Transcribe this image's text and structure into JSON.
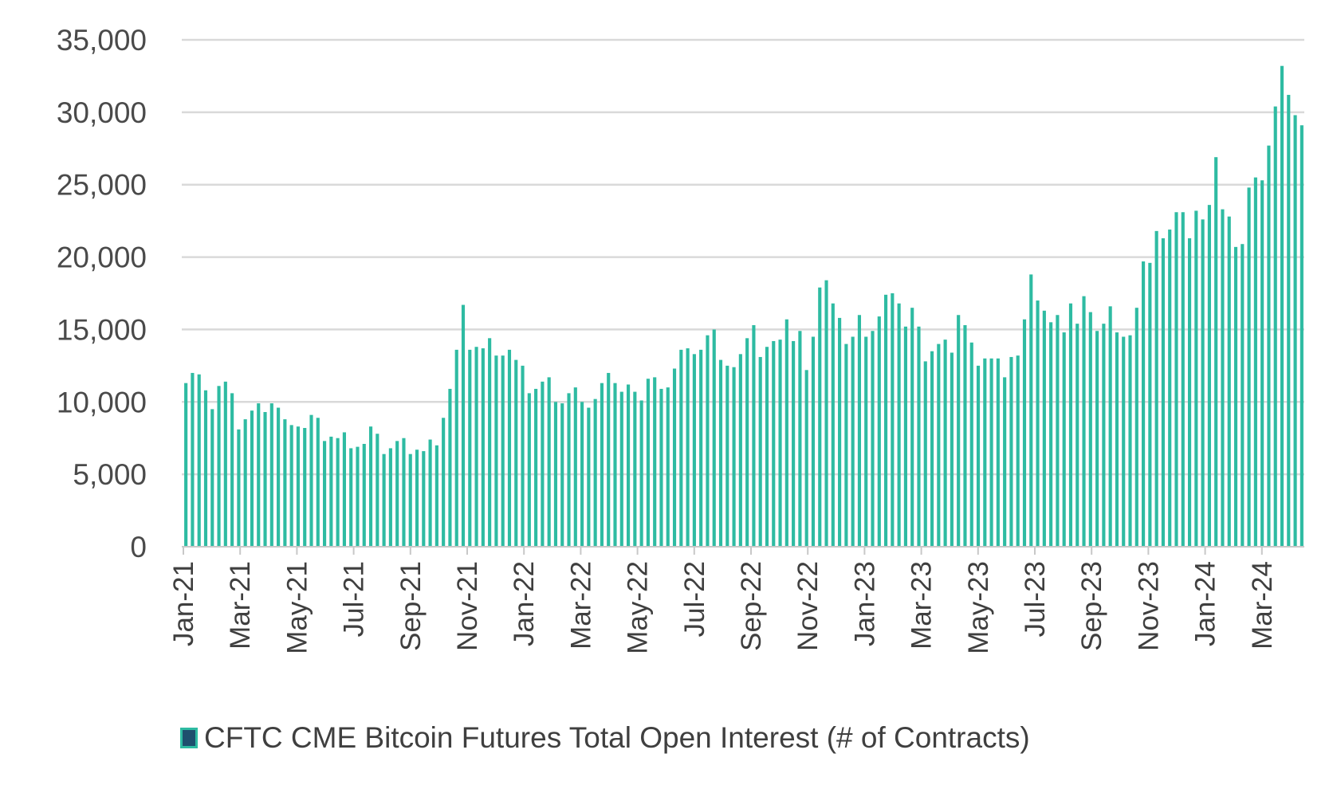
{
  "chart_data": {
    "type": "bar",
    "title": "",
    "xlabel": "",
    "ylabel": "",
    "ylim": [
      0,
      35000
    ],
    "yticks": [
      0,
      5000,
      10000,
      15000,
      20000,
      25000,
      30000,
      35000
    ],
    "ytick_labels": [
      "0",
      "5,000",
      "10,000",
      "15,000",
      "20,000",
      "25,000",
      "30,000",
      "35,000"
    ],
    "xtick_labels": [
      "Jan-21",
      "Mar-21",
      "May-21",
      "Jul-21",
      "Sep-21",
      "Nov-21",
      "Jan-22",
      "Mar-22",
      "May-22",
      "Jul-22",
      "Sep-22",
      "Nov-22",
      "Jan-23",
      "Mar-23",
      "May-23",
      "Jul-23",
      "Sep-23",
      "Nov-23",
      "Jan-24",
      "Mar-24"
    ],
    "grid": true,
    "legend_position": "bottom",
    "series": [
      {
        "name": "CFTC CME Bitcoin Futures Total Open Interest (# of Contracts)",
        "color": "#2ebba2",
        "values": [
          11300,
          12000,
          11900,
          10800,
          9500,
          11100,
          11400,
          10600,
          8100,
          8800,
          9400,
          9900,
          9300,
          9900,
          9600,
          8800,
          8400,
          8300,
          8200,
          9100,
          8900,
          7300,
          7600,
          7500,
          7900,
          6800,
          6900,
          7100,
          8300,
          7800,
          6400,
          6800,
          7300,
          7500,
          6400,
          6700,
          6600,
          7400,
          7000,
          8900,
          10900,
          13600,
          16700,
          13600,
          13800,
          13700,
          14400,
          13200,
          13200,
          13600,
          12900,
          12500,
          10600,
          10900,
          11400,
          11700,
          10000,
          9900,
          10600,
          11000,
          10000,
          9600,
          10200,
          11300,
          12000,
          11300,
          10700,
          11200,
          10700,
          10100,
          11600,
          11700,
          10900,
          11000,
          12300,
          13600,
          13700,
          13300,
          13600,
          14600,
          15000,
          12900,
          12500,
          12400,
          13300,
          14400,
          15300,
          13100,
          13800,
          14200,
          14300,
          15700,
          14200,
          14900,
          12200,
          14500,
          17900,
          18400,
          16800,
          15800,
          14000,
          14500,
          16000,
          14500,
          14900,
          15900,
          17400,
          17500,
          16800,
          15200,
          16500,
          15200,
          12800,
          13500,
          14000,
          14300,
          13400,
          16000,
          15300,
          14100,
          12500,
          13000,
          13000,
          13000,
          11700,
          13100,
          13200,
          15700,
          18800,
          17000,
          16300,
          15500,
          16000,
          14800,
          16800,
          15400,
          17300,
          16200,
          14900,
          15400,
          16600,
          14800,
          14500,
          14600,
          16500,
          19700,
          19600,
          21800,
          21300,
          21900,
          23100,
          23100,
          21300,
          23200,
          22600,
          23600,
          26900,
          23300,
          22800,
          20700,
          20900,
          24800,
          25500,
          25300,
          27700,
          30400,
          33200,
          31200,
          29800,
          29100
        ]
      }
    ]
  },
  "legend": {
    "label": "CFTC CME Bitcoin Futures Total Open Interest (# of Contracts)",
    "swatch_fill": "#1e4f6e",
    "swatch_border": "#2ebba2"
  }
}
